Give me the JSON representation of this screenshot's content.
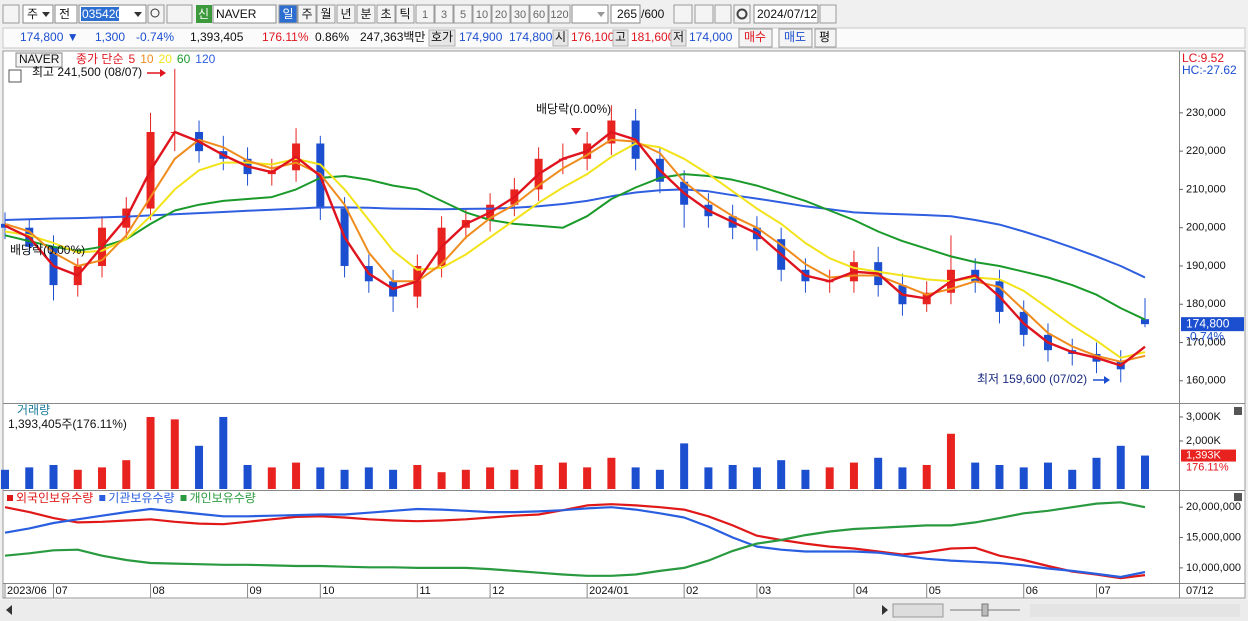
{
  "toolbar": {
    "period_type": "주",
    "view": "전",
    "code": "035420",
    "new_badge": "신",
    "name": "NAVER",
    "intervals": [
      "일",
      "주",
      "월",
      "년",
      "분",
      "초",
      "틱"
    ],
    "multipliers": [
      "1",
      "3",
      "5",
      "10",
      "20",
      "30",
      "60",
      "120"
    ],
    "count": "265",
    "max_count": "/600",
    "date": "2024/07/12"
  },
  "info_bar": {
    "price": "174,800 ▼",
    "change": "1,300",
    "change_pct": "-0.74%",
    "volume": "1,393,405",
    "volume_ratio": "176.11%",
    "turnover": "0.86%",
    "amount": "247,363백만",
    "quote_label": "호가",
    "ask": "174,900",
    "bid": "174,800",
    "open_label": "시",
    "open": "176,100",
    "high_label": "고",
    "high": "181,600",
    "low_label": "저",
    "low": "174,000",
    "buy": "매수",
    "sell": "매도",
    "eval": "평"
  },
  "chart_data": [
    {
      "type": "candlestick",
      "legend_name": "NAVER",
      "legend_prefix": "종가 단순",
      "categories": [
        "2023/06",
        null,
        "07",
        null,
        null,
        null,
        "08",
        null,
        null,
        null,
        "09",
        null,
        null,
        "10",
        null,
        null,
        null,
        "11",
        null,
        null,
        "12",
        null,
        null,
        null,
        "2024/01",
        null,
        null,
        null,
        "02",
        null,
        null,
        "03",
        null,
        null,
        null,
        "04",
        null,
        null,
        "05",
        null,
        null,
        null,
        "06",
        null,
        null,
        "07",
        null,
        null
      ],
      "open": [
        201000,
        200000,
        195000,
        185000,
        190000,
        200000,
        205000,
        225000,
        225000,
        220000,
        218000,
        214000,
        215000,
        222000,
        205000,
        190000,
        186000,
        182000,
        190000,
        200000,
        202000,
        206000,
        210000,
        218000,
        218000,
        222000,
        228000,
        218000,
        212000,
        206000,
        203000,
        200000,
        197000,
        189000,
        186000,
        186000,
        191000,
        185000,
        180000,
        183000,
        189000,
        186000,
        178000,
        172000,
        168000,
        167000,
        165000,
        176100
      ],
      "high": [
        204000,
        202000,
        198000,
        192000,
        203000,
        208000,
        230000,
        241500,
        228000,
        224000,
        221000,
        218000,
        226000,
        224000,
        208000,
        193000,
        189000,
        193000,
        203000,
        205000,
        209000,
        213000,
        221000,
        222000,
        225000,
        232000,
        231000,
        221000,
        215000,
        209000,
        206000,
        203000,
        200000,
        192000,
        189000,
        194000,
        195000,
        188000,
        186000,
        198000,
        192000,
        189000,
        181000,
        175000,
        171000,
        170000,
        168000,
        181600
      ],
      "low": [
        197000,
        193000,
        181000,
        182000,
        187000,
        197000,
        202000,
        220000,
        217000,
        215000,
        211000,
        211000,
        212000,
        202000,
        187000,
        183000,
        178000,
        179000,
        187000,
        197000,
        199000,
        203000,
        207000,
        214000,
        215000,
        219000,
        215000,
        209000,
        200000,
        200000,
        197000,
        194000,
        186000,
        183000,
        183000,
        183000,
        182000,
        177000,
        178000,
        180000,
        183000,
        175000,
        169000,
        165000,
        164000,
        162000,
        159600,
        174000
      ],
      "close": [
        200000,
        195000,
        185000,
        190000,
        200000,
        205000,
        225000,
        225000,
        220000,
        218000,
        214000,
        215000,
        222000,
        205000,
        190000,
        186000,
        182000,
        190000,
        200000,
        202000,
        206000,
        210000,
        218000,
        218000,
        222000,
        228000,
        218000,
        212000,
        206000,
        203000,
        200000,
        197000,
        189000,
        186000,
        186000,
        191000,
        185000,
        180000,
        183000,
        189000,
        186000,
        178000,
        172000,
        168000,
        167000,
        165000,
        163000,
        174800
      ],
      "up_color": "#e8231f",
      "down_color": "#1c4fd0",
      "series": [
        {
          "name": "5",
          "color": "#e0141e",
          "values": [
            200500,
            197500,
            190000,
            187500,
            195000,
            202500,
            215000,
            225000,
            222500,
            219000,
            216000,
            214500,
            218500,
            213500,
            197500,
            188000,
            184000,
            186000,
            195000,
            201000,
            204000,
            208000,
            214000,
            218000,
            220000,
            225000,
            223000,
            215000,
            209000,
            204500,
            201500,
            198500,
            193000,
            187500,
            186000,
            188500,
            188000,
            182500,
            181500,
            186000,
            187500,
            182000,
            175000,
            170000,
            167500,
            166000,
            164000,
            168900
          ]
        },
        {
          "name": "10",
          "color": "#f08c1e",
          "values": [
            201000,
            199000,
            193500,
            190000,
            191500,
            198000,
            208000,
            218000,
            223000,
            221000,
            217500,
            215500,
            217000,
            214000,
            206000,
            193500,
            186000,
            186000,
            190500,
            197500,
            202500,
            206000,
            211000,
            215500,
            219000,
            223000,
            222500,
            219500,
            212000,
            207000,
            203000,
            200000,
            195500,
            190500,
            187000,
            187500,
            187500,
            185000,
            182500,
            184000,
            186000,
            184500,
            178500,
            172500,
            169000,
            166500,
            165000,
            166500
          ]
        },
        {
          "name": "20",
          "color": "#f2e31a",
          "values": [
            199000,
            198000,
            196000,
            193500,
            194000,
            197000,
            203000,
            210000,
            215000,
            217000,
            217000,
            216500,
            218000,
            216500,
            210000,
            202000,
            194000,
            189000,
            189500,
            193000,
            197500,
            202000,
            206500,
            210500,
            214000,
            218500,
            222000,
            221000,
            218000,
            214000,
            209500,
            205000,
            201000,
            196000,
            192000,
            189500,
            188500,
            187500,
            186500,
            186000,
            187000,
            186500,
            183500,
            179000,
            174500,
            170500,
            166000,
            167500
          ]
        },
        {
          "name": "60",
          "color": "#1a9a2a",
          "values": [
            198000,
            196500,
            195000,
            194000,
            195000,
            197000,
            201000,
            204500,
            206000,
            207000,
            207500,
            208000,
            210000,
            213000,
            213500,
            212500,
            211000,
            210000,
            207000,
            204000,
            202000,
            201000,
            200500,
            200000,
            203000,
            207500,
            210500,
            213000,
            214000,
            213500,
            212500,
            211000,
            209000,
            207000,
            204500,
            202000,
            199000,
            196500,
            194500,
            192500,
            191000,
            190000,
            188500,
            187000,
            185000,
            182500,
            179000,
            176000
          ]
        },
        {
          "name": "120",
          "color": "#2f5fe0",
          "values": [
            202000,
            202200,
            202400,
            202500,
            202700,
            202900,
            203200,
            203500,
            203800,
            204100,
            204400,
            204700,
            205000,
            205300,
            205300,
            205200,
            205000,
            204900,
            204800,
            204900,
            205000,
            205200,
            205600,
            206200,
            207000,
            208200,
            209200,
            209800,
            210000,
            209500,
            208500,
            207600,
            206600,
            205600,
            204800,
            204000,
            203700,
            203500,
            203300,
            203000,
            202000,
            200800,
            199000,
            197000,
            194800,
            192500,
            190000,
            187000
          ]
        }
      ],
      "ylim": [
        154200,
        245900
      ],
      "yticks": [
        {
          "value": 160000,
          "label": "160,000"
        },
        {
          "value": 170000,
          "label": "170,000"
        },
        {
          "value": 180000,
          "label": "180,000"
        },
        {
          "value": 190000,
          "label": "190,000"
        },
        {
          "value": 200000,
          "label": "200,000"
        },
        {
          "value": 210000,
          "label": "210,000"
        },
        {
          "value": 220000,
          "label": "220,000"
        },
        {
          "value": 230000,
          "label": "230,000"
        }
      ],
      "right_notes": [
        "LC:9.52",
        "HC:-27.62"
      ],
      "current": {
        "value": 174800,
        "label": "174,800"
      },
      "current_change": "-0.74%",
      "annotations": [
        "최고 241,500 (08/07)",
        "배당락(0.00%)",
        "배당락(0.00%)",
        "최저 159,600 (07/02)"
      ],
      "x_end_label": "07/12"
    },
    {
      "type": "volume_bar",
      "title": "거래량",
      "subtitle": "1,393,405주(176.11%)",
      "values": [
        800000,
        900000,
        1000000,
        800000,
        900000,
        1200000,
        3000000,
        2900000,
        1800000,
        3000000,
        1000000,
        900000,
        1100000,
        900000,
        800000,
        900000,
        800000,
        1000000,
        700000,
        800000,
        900000,
        800000,
        1000000,
        1100000,
        900000,
        1300000,
        900000,
        800000,
        1900000,
        900000,
        1000000,
        900000,
        1200000,
        800000,
        900000,
        1100000,
        1300000,
        900000,
        1000000,
        2300000,
        1100000,
        1000000,
        900000,
        1100000,
        800000,
        1300000,
        1800000,
        1393405
      ],
      "ylim": [
        0,
        3540000
      ],
      "yticks": [
        {
          "value": 2000000,
          "label": "2,000K"
        },
        {
          "value": 3000000,
          "label": "3,000K"
        }
      ],
      "current": {
        "value": 1393405,
        "label": "1,393K"
      },
      "current_ratio": "176.11%"
    },
    {
      "type": "line",
      "series": [
        {
          "name": "외국인보유수량",
          "color": "#e01818",
          "values": [
            20000000,
            19200000,
            18200000,
            17500000,
            17600000,
            17800000,
            18000000,
            17600000,
            17300000,
            17200000,
            17600000,
            18000000,
            18400000,
            18500000,
            18300000,
            18000000,
            17800000,
            17700000,
            17800000,
            18000000,
            18300000,
            18600000,
            18800000,
            19500000,
            20300000,
            20500000,
            20300000,
            20000000,
            19600000,
            18500000,
            17000000,
            15300000,
            14600000,
            14000000,
            13500000,
            13200000,
            12700000,
            12200000,
            12600000,
            13200000,
            13300000,
            12000000,
            11300000,
            10300000,
            9400000,
            8900000,
            8300000,
            8800000
          ]
        },
        {
          "name": "기관보유수량",
          "color": "#2a5ee0",
          "values": [
            15800000,
            16500000,
            17400000,
            18000000,
            18600000,
            19200000,
            19700000,
            19300000,
            18900000,
            18500000,
            18500000,
            18600000,
            18700000,
            18800000,
            18800000,
            19100000,
            19400000,
            19700000,
            19600000,
            19400000,
            19200000,
            19200000,
            19300000,
            19500000,
            19800000,
            20000000,
            19600000,
            19000000,
            18300000,
            16800000,
            15000000,
            13500000,
            13000000,
            12700000,
            12700000,
            12700000,
            12500000,
            12000000,
            11500000,
            11200000,
            11000000,
            10800000,
            10400000,
            9900000,
            9500000,
            9000000,
            8500000,
            9300000
          ]
        },
        {
          "name": "개인보유수량",
          "color": "#2a9a40",
          "values": [
            12000000,
            12400000,
            12900000,
            13000000,
            12000000,
            11300000,
            10800000,
            10700000,
            10600000,
            10500000,
            10500000,
            10400000,
            10300000,
            10300000,
            10200000,
            10100000,
            10100000,
            10000000,
            10000000,
            10000000,
            9800000,
            9500000,
            9200000,
            8900000,
            8700000,
            8700000,
            8900000,
            9500000,
            10000000,
            11200000,
            12800000,
            14000000,
            14600000,
            15400000,
            16000000,
            16400000,
            16600000,
            16800000,
            17000000,
            17000000,
            17500000,
            18200000,
            19000000,
            19400000,
            20000000,
            20600000,
            20800000,
            20000000
          ]
        }
      ],
      "ylim": [
        7670000,
        22670000
      ],
      "yticks": [
        {
          "value": 10000000,
          "label": "10,000,000"
        },
        {
          "value": 15000000,
          "label": "15,000,000"
        },
        {
          "value": 20000000,
          "label": "20,000,000"
        }
      ]
    }
  ]
}
